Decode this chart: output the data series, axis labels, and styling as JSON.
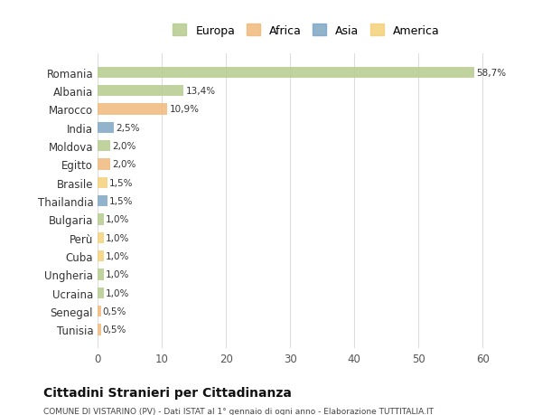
{
  "countries": [
    "Romania",
    "Albania",
    "Marocco",
    "India",
    "Moldova",
    "Egitto",
    "Brasile",
    "Thailandia",
    "Bulgaria",
    "Perù",
    "Cuba",
    "Ungheria",
    "Ucraina",
    "Senegal",
    "Tunisia"
  ],
  "values": [
    58.7,
    13.4,
    10.9,
    2.5,
    2.0,
    2.0,
    1.5,
    1.5,
    1.0,
    1.0,
    1.0,
    1.0,
    1.0,
    0.5,
    0.5
  ],
  "labels": [
    "58,7%",
    "13,4%",
    "10,9%",
    "2,5%",
    "2,0%",
    "2,0%",
    "1,5%",
    "1,5%",
    "1,0%",
    "1,0%",
    "1,0%",
    "1,0%",
    "1,0%",
    "0,5%",
    "0,5%"
  ],
  "colors": [
    "#b5cc8e",
    "#b5cc8e",
    "#f0b97a",
    "#7ea6c4",
    "#b5cc8e",
    "#f0b97a",
    "#f5d07a",
    "#7ea6c4",
    "#b5cc8e",
    "#f5d07a",
    "#f5d07a",
    "#b5cc8e",
    "#b5cc8e",
    "#f0b97a",
    "#f0b97a"
  ],
  "continents": [
    "Europa",
    "Africa",
    "Asia",
    "America"
  ],
  "legend_colors": [
    "#b5cc8e",
    "#f0b97a",
    "#7ea6c4",
    "#f5d07a"
  ],
  "title": "Cittadini Stranieri per Cittadinanza",
  "subtitle": "COMUNE DI VISTARINO (PV) - Dati ISTAT al 1° gennaio di ogni anno - Elaborazione TUTTITALIA.IT",
  "xlim": [
    0,
    65
  ],
  "xticks": [
    0,
    10,
    20,
    30,
    40,
    50,
    60
  ],
  "bg_color": "#ffffff",
  "grid_color": "#dddddd",
  "bar_height": 0.6
}
